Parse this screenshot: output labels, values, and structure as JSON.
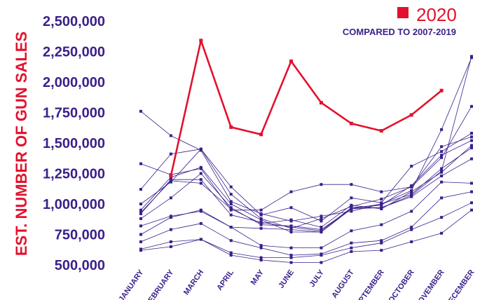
{
  "chart_data": {
    "type": "line",
    "ylabel": "EST. NUMBER OF GUN SALES",
    "ylim": [
      500000,
      2500000
    ],
    "y_ticks": [
      "2,500,000",
      "2,250,000",
      "2,000,000",
      "1,750,000",
      "1,500,000",
      "1,250,000",
      "1,000,000",
      "750,000",
      "500,000"
    ],
    "y_tick_values": [
      2500000,
      2250000,
      2000000,
      1750000,
      1500000,
      1250000,
      1000000,
      750000,
      500000
    ],
    "categories": [
      "JANUARY",
      "FEBRUARY",
      "MARCH",
      "APRIL",
      "MAY",
      "JUNE",
      "JULY",
      "AUGUST",
      "SEPTEMBER",
      "OCTOBER",
      "NOVEMBER",
      "DECEMBER"
    ],
    "legend": {
      "title": "2020",
      "subtitle": "COMPARED TO 2007-2019",
      "placement": "top-right"
    },
    "colors": {
      "highlight": "#e3112d",
      "comparison": "#3b1f8a",
      "axis_text": "#3b1f8a"
    },
    "series": [
      {
        "name": "2020",
        "highlight": true,
        "values": [
          null,
          1230000,
          2340000,
          1630000,
          1570000,
          2170000,
          1830000,
          1660000,
          1600000,
          1730000,
          1930000,
          null
        ]
      },
      {
        "values": [
          620000,
          650000,
          710000,
          580000,
          540000,
          520000,
          520000,
          610000,
          620000,
          690000,
          760000,
          950000
        ]
      },
      {
        "values": [
          630000,
          690000,
          710000,
          600000,
          560000,
          560000,
          580000,
          640000,
          680000,
          790000,
          890000,
          1010000
        ]
      },
      {
        "values": [
          690000,
          790000,
          840000,
          700000,
          640000,
          580000,
          590000,
          680000,
          700000,
          810000,
          1050000,
          1100000
        ]
      },
      {
        "values": [
          750000,
          890000,
          950000,
          810000,
          660000,
          640000,
          640000,
          780000,
          830000,
          940000,
          1180000,
          1170000
        ]
      },
      {
        "values": [
          820000,
          900000,
          940000,
          810000,
          800000,
          790000,
          770000,
          960000,
          970000,
          1060000,
          1230000,
          1370000
        ]
      },
      {
        "values": [
          880000,
          1050000,
          1250000,
          970000,
          830000,
          820000,
          790000,
          960000,
          1000000,
          1080000,
          1290000,
          1460000
        ]
      },
      {
        "values": [
          930000,
          1190000,
          1170000,
          960000,
          840000,
          870000,
          810000,
          990000,
          960000,
          1100000,
          1260000,
          1480000
        ]
      },
      {
        "values": [
          950000,
          1220000,
          1300000,
          1000000,
          870000,
          770000,
          770000,
          970000,
          990000,
          1150000,
          1400000,
          1520000
        ]
      },
      {
        "values": [
          1000000,
          1180000,
          1450000,
          1080000,
          880000,
          800000,
          880000,
          980000,
          1040000,
          1140000,
          1470000,
          1550000
        ]
      },
      {
        "values": [
          1120000,
          1410000,
          1450000,
          1140000,
          910000,
          970000,
          860000,
          1050000,
          1010000,
          1310000,
          1430000,
          1580000
        ]
      },
      {
        "values": [
          1330000,
          1240000,
          1290000,
          950000,
          950000,
          1100000,
          1160000,
          1160000,
          1100000,
          1140000,
          1380000,
          1800000
        ]
      },
      {
        "values": [
          1760000,
          1560000,
          1440000,
          1020000,
          920000,
          860000,
          900000,
          940000,
          1000000,
          1110000,
          1610000,
          2200000
        ]
      },
      {
        "values": [
          920000,
          1200000,
          1200000,
          910000,
          850000,
          810000,
          780000,
          970000,
          970000,
          1070000,
          1270000,
          2210000
        ]
      }
    ]
  }
}
